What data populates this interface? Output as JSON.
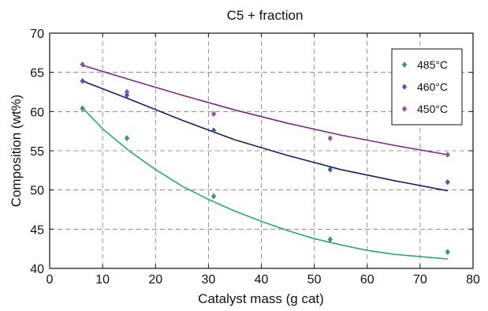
{
  "chart_data": {
    "type": "scatter",
    "title": "C5 + fraction",
    "xlabel": "Catalyst mass (g cat)",
    "ylabel": "Composition (wt%)",
    "xlim": [
      0,
      80
    ],
    "ylim": [
      40,
      70
    ],
    "xticks": [
      0,
      10,
      20,
      30,
      40,
      50,
      60,
      70,
      80
    ],
    "yticks": [
      40,
      45,
      50,
      55,
      60,
      65,
      70
    ],
    "grid": true,
    "legend_position": "top-right",
    "series": [
      {
        "name": "485°C",
        "color": "#2aa876",
        "points": [
          [
            6.2,
            60.4
          ],
          [
            14.6,
            56.6
          ],
          [
            31.0,
            49.2
          ],
          [
            53.0,
            43.7
          ],
          [
            75.2,
            42.1
          ]
        ],
        "fit": [
          [
            6.2,
            60.5
          ],
          [
            10,
            57.8
          ],
          [
            15,
            55.0
          ],
          [
            20,
            52.6
          ],
          [
            25,
            50.5
          ],
          [
            30,
            48.8
          ],
          [
            35,
            47.3
          ],
          [
            40,
            46.0
          ],
          [
            45,
            44.8
          ],
          [
            50,
            43.8
          ],
          [
            55,
            43.0
          ],
          [
            60,
            42.3
          ],
          [
            65,
            41.8
          ],
          [
            70,
            41.5
          ],
          [
            75.2,
            41.2
          ]
        ]
      },
      {
        "name": "460°C",
        "color": "#3d5fc4",
        "points": [
          [
            6.2,
            63.9
          ],
          [
            14.6,
            62.1
          ],
          [
            31.0,
            57.6
          ],
          [
            53.0,
            52.6
          ],
          [
            75.2,
            51.0
          ]
        ],
        "fit": [
          [
            6.2,
            63.9
          ],
          [
            15,
            61.6
          ],
          [
            25,
            58.9
          ],
          [
            35,
            56.4
          ],
          [
            45,
            54.4
          ],
          [
            55,
            52.6
          ],
          [
            65,
            51.2
          ],
          [
            75.2,
            49.9
          ]
        ],
        "fit_color": "#1c2060"
      },
      {
        "name": "450°C",
        "color": "#b04ac0",
        "points": [
          [
            6.2,
            66.0
          ],
          [
            14.6,
            62.5
          ],
          [
            31.0,
            59.7
          ],
          [
            53.0,
            56.6
          ],
          [
            75.2,
            54.5
          ]
        ],
        "fit": [
          [
            6.2,
            65.9
          ],
          [
            15,
            64.1
          ],
          [
            25,
            62.1
          ],
          [
            35,
            60.2
          ],
          [
            45,
            58.5
          ],
          [
            55,
            57.0
          ],
          [
            65,
            55.7
          ],
          [
            75.2,
            54.5
          ]
        ],
        "fit_color": "#7a2a82"
      }
    ]
  }
}
